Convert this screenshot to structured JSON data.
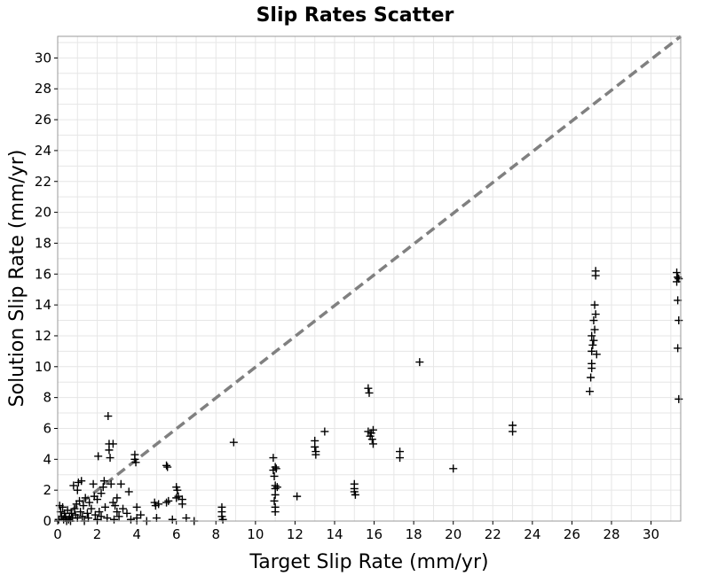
{
  "chart_data": {
    "type": "scatter",
    "title": "Slip Rates Scatter",
    "xlabel": "Target Slip Rate (mm/yr)",
    "ylabel": "Solution Slip Rate (mm/yr)",
    "xlim": [
      0,
      31.5
    ],
    "ylim": [
      0,
      31.4
    ],
    "xticks": [
      0,
      2,
      4,
      6,
      8,
      10,
      12,
      14,
      16,
      18,
      20,
      22,
      24,
      26,
      28,
      30
    ],
    "yticks": [
      0,
      2,
      4,
      6,
      8,
      10,
      12,
      14,
      16,
      18,
      20,
      22,
      24,
      26,
      28,
      30
    ],
    "grid": true,
    "legend": "none",
    "marker": "plus",
    "colors": {
      "points": "#000000",
      "reference_line": "#808080",
      "grid": "#e6e6e6",
      "frame": "#999999"
    },
    "reference_line": {
      "style": "dashed",
      "from": [
        0,
        0
      ],
      "to": [
        31.5,
        31.5
      ]
    },
    "points": [
      [
        0.05,
        0.1
      ],
      [
        0.1,
        1.0
      ],
      [
        0.15,
        0.6
      ],
      [
        0.2,
        0.3
      ],
      [
        0.25,
        0.9
      ],
      [
        0.3,
        0.1
      ],
      [
        0.35,
        0.5
      ],
      [
        0.4,
        0.2
      ],
      [
        0.45,
        0.0
      ],
      [
        0.5,
        0.7
      ],
      [
        0.55,
        0.1
      ],
      [
        0.6,
        0.3
      ],
      [
        0.65,
        0.0
      ],
      [
        0.7,
        0.5
      ],
      [
        0.75,
        0.2
      ],
      [
        0.8,
        2.3
      ],
      [
        0.85,
        0.8
      ],
      [
        0.9,
        0.4
      ],
      [
        0.95,
        1.1
      ],
      [
        1.0,
        2.0
      ],
      [
        1.0,
        0.2
      ],
      [
        1.05,
        2.5
      ],
      [
        1.1,
        1.3
      ],
      [
        1.15,
        0.6
      ],
      [
        1.2,
        2.6
      ],
      [
        1.25,
        0.3
      ],
      [
        1.3,
        1.0
      ],
      [
        1.35,
        0.0
      ],
      [
        1.4,
        1.5
      ],
      [
        1.5,
        0.5
      ],
      [
        1.55,
        0.2
      ],
      [
        1.6,
        1.2
      ],
      [
        1.7,
        0.8
      ],
      [
        1.8,
        2.4
      ],
      [
        1.85,
        1.6
      ],
      [
        1.9,
        0.4
      ],
      [
        2.0,
        1.4
      ],
      [
        2.0,
        0.1
      ],
      [
        2.05,
        4.2
      ],
      [
        2.1,
        0.6
      ],
      [
        2.2,
        1.8
      ],
      [
        2.2,
        0.3
      ],
      [
        2.3,
        2.2
      ],
      [
        2.35,
        2.6
      ],
      [
        2.4,
        0.9
      ],
      [
        2.5,
        0.2
      ],
      [
        2.55,
        6.8
      ],
      [
        2.6,
        5.0
      ],
      [
        2.6,
        4.6
      ],
      [
        2.65,
        4.1
      ],
      [
        2.7,
        2.4
      ],
      [
        2.8,
        5.0
      ],
      [
        2.8,
        1.2
      ],
      [
        2.85,
        0.1
      ],
      [
        2.9,
        1.0
      ],
      [
        3.0,
        1.5
      ],
      [
        3.0,
        0.6
      ],
      [
        3.1,
        0.3
      ],
      [
        3.2,
        2.4
      ],
      [
        3.3,
        0.8
      ],
      [
        3.5,
        0.5
      ],
      [
        3.6,
        1.9
      ],
      [
        3.7,
        0.1
      ],
      [
        3.9,
        4.3
      ],
      [
        3.9,
        4.0
      ],
      [
        3.95,
        3.8
      ],
      [
        4.0,
        0.9
      ],
      [
        4.0,
        0.2
      ],
      [
        4.2,
        0.4
      ],
      [
        4.5,
        0.0
      ],
      [
        4.9,
        1.2
      ],
      [
        4.95,
        1.0
      ],
      [
        5.0,
        0.2
      ],
      [
        5.1,
        1.1
      ],
      [
        5.5,
        3.6
      ],
      [
        5.55,
        3.5
      ],
      [
        5.5,
        1.2
      ],
      [
        5.6,
        1.3
      ],
      [
        5.8,
        0.1
      ],
      [
        6.0,
        2.2
      ],
      [
        6.05,
        2.0
      ],
      [
        6.0,
        1.5
      ],
      [
        6.1,
        1.6
      ],
      [
        6.3,
        1.4
      ],
      [
        6.3,
        1.1
      ],
      [
        6.5,
        0.2
      ],
      [
        6.9,
        0.0
      ],
      [
        8.3,
        0.9
      ],
      [
        8.3,
        0.6
      ],
      [
        8.3,
        0.3
      ],
      [
        8.35,
        0.1
      ],
      [
        8.9,
        5.1
      ],
      [
        10.9,
        4.1
      ],
      [
        10.9,
        3.3
      ],
      [
        10.95,
        2.9
      ],
      [
        11.0,
        3.5
      ],
      [
        11.0,
        2.3
      ],
      [
        11.0,
        2.1
      ],
      [
        11.0,
        1.7
      ],
      [
        10.95,
        1.3
      ],
      [
        11.0,
        0.9
      ],
      [
        11.0,
        0.6
      ],
      [
        11.05,
        3.4
      ],
      [
        11.1,
        2.2
      ],
      [
        12.1,
        1.6
      ],
      [
        13.0,
        5.2
      ],
      [
        13.0,
        4.8
      ],
      [
        13.05,
        4.5
      ],
      [
        13.05,
        4.3
      ],
      [
        13.5,
        5.8
      ],
      [
        15.0,
        2.4
      ],
      [
        15.0,
        2.1
      ],
      [
        15.0,
        1.9
      ],
      [
        15.05,
        1.7
      ],
      [
        15.7,
        8.6
      ],
      [
        15.75,
        8.3
      ],
      [
        15.7,
        5.8
      ],
      [
        15.8,
        5.5
      ],
      [
        15.85,
        5.7
      ],
      [
        15.9,
        5.3
      ],
      [
        15.95,
        5.0
      ],
      [
        15.95,
        5.9
      ],
      [
        17.3,
        4.5
      ],
      [
        17.3,
        4.1
      ],
      [
        18.3,
        10.3
      ],
      [
        20.0,
        3.4
      ],
      [
        23.0,
        6.2
      ],
      [
        23.0,
        5.8
      ],
      [
        26.9,
        8.4
      ],
      [
        26.95,
        9.3
      ],
      [
        27.0,
        9.9
      ],
      [
        27.0,
        10.2
      ],
      [
        27.0,
        11.0
      ],
      [
        27.05,
        11.4
      ],
      [
        27.0,
        12.0
      ],
      [
        27.1,
        11.7
      ],
      [
        27.15,
        12.4
      ],
      [
        27.1,
        13.0
      ],
      [
        27.2,
        13.4
      ],
      [
        27.15,
        14.0
      ],
      [
        27.2,
        15.9
      ],
      [
        27.2,
        16.2
      ],
      [
        27.25,
        10.8
      ],
      [
        31.3,
        16.1
      ],
      [
        31.35,
        15.8
      ],
      [
        31.3,
        15.5
      ],
      [
        31.4,
        15.7
      ],
      [
        31.35,
        14.3
      ],
      [
        31.4,
        13.0
      ],
      [
        31.35,
        11.2
      ],
      [
        31.4,
        7.9
      ]
    ]
  }
}
